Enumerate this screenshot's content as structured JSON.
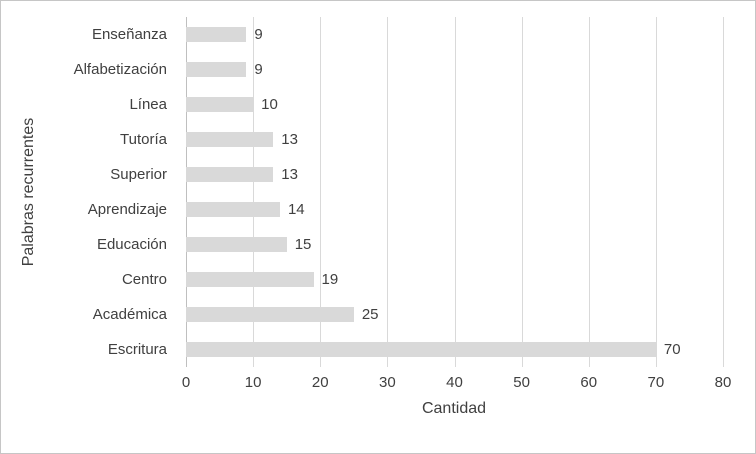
{
  "chart_data": {
    "type": "bar",
    "orientation": "horizontal",
    "title": "",
    "xlabel": "Cantidad",
    "ylabel": "Palabras recurrentes",
    "categories": [
      "Enseñanza",
      "Alfabetización",
      "Línea",
      "Tutoría",
      "Superior",
      "Aprendizaje",
      "Educación",
      "Centro",
      "Académica",
      "Escritura"
    ],
    "values": [
      9,
      9,
      10,
      13,
      13,
      14,
      15,
      19,
      25,
      70
    ],
    "xlim": [
      0,
      80
    ],
    "xticks": [
      0,
      10,
      20,
      30,
      40,
      50,
      60,
      70,
      80
    ],
    "grid": true,
    "legend": "none",
    "bar_color": "#d9d9d9",
    "gridline_color": "#d9d9d9",
    "text_color": "#404040"
  }
}
